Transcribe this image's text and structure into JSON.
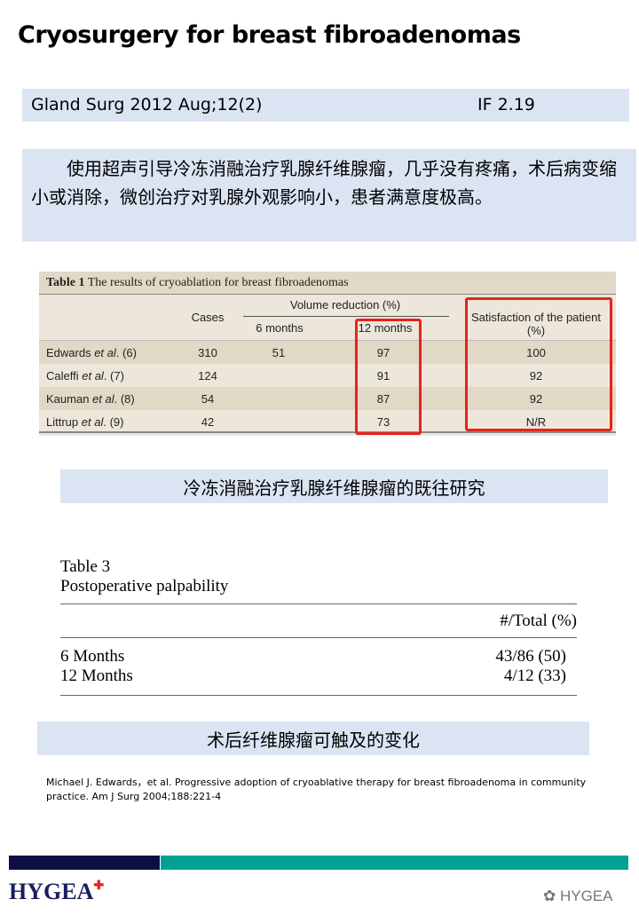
{
  "title": "Cryosurgery for breast fibroadenomas",
  "journal": {
    "citation": "Gland Surg 2012 Aug;12(2)",
    "impact": "IF 2.19"
  },
  "summary": "使用超声引导冷冻消融治疗乳腺纤维腺瘤，几乎没有疼痛，术后病变缩小或消除，微创治疗对乳腺外观影响小，患者满意度极高。",
  "table1": {
    "caption_bold": "Table 1",
    "caption": " The results of cryoablation for breast fibroadenomas",
    "headers": {
      "cases": "Cases",
      "volume": "Volume reduction (%)",
      "m6": "6 months",
      "m12": "12 months",
      "satisfaction": "Satisfaction of the patient (%)"
    },
    "rows": [
      {
        "author": "Edwards",
        "etal": "et al",
        "ref": ". (6)",
        "cases": "310",
        "m6": "51",
        "m12": "97",
        "sat": "100"
      },
      {
        "author": "Caleffi",
        "etal": "et al",
        "ref": ". (7)",
        "cases": "124",
        "m6": "",
        "m12": "91",
        "sat": "92"
      },
      {
        "author": "Kauman",
        "etal": "et al",
        "ref": ". (8)",
        "cases": "54",
        "m6": "",
        "m12": "87",
        "sat": "92"
      },
      {
        "author": "Littrup",
        "etal": "et al",
        "ref": ". (9)",
        "cases": "42",
        "m6": "",
        "m12": "73",
        "sat": "N/R"
      }
    ],
    "highlight_color": "#e8221c"
  },
  "caption1": "冷冻消融治疗乳腺纤维腺瘤的既往研究",
  "table3": {
    "title": "Table 3",
    "subtitle": "Postoperative palpability",
    "col": "#/Total (%)",
    "rows": [
      {
        "label": "6 Months",
        "value": "43/86 (50)"
      },
      {
        "label": "12 Months",
        "value": "4/12 (33)"
      }
    ]
  },
  "caption2": "术后纤维腺瘤可触及的变化",
  "reference": "Michael J. Edwards，et al. Progressive adoption of cryoablative therapy for breast fibroadenoma in community practice. Am J Surg 2004;188:221-4",
  "footer": {
    "logo": "HYGEA",
    "watermark": "HYGEA",
    "colors": {
      "navy": "#0e0e45",
      "teal": "#00a095"
    }
  }
}
